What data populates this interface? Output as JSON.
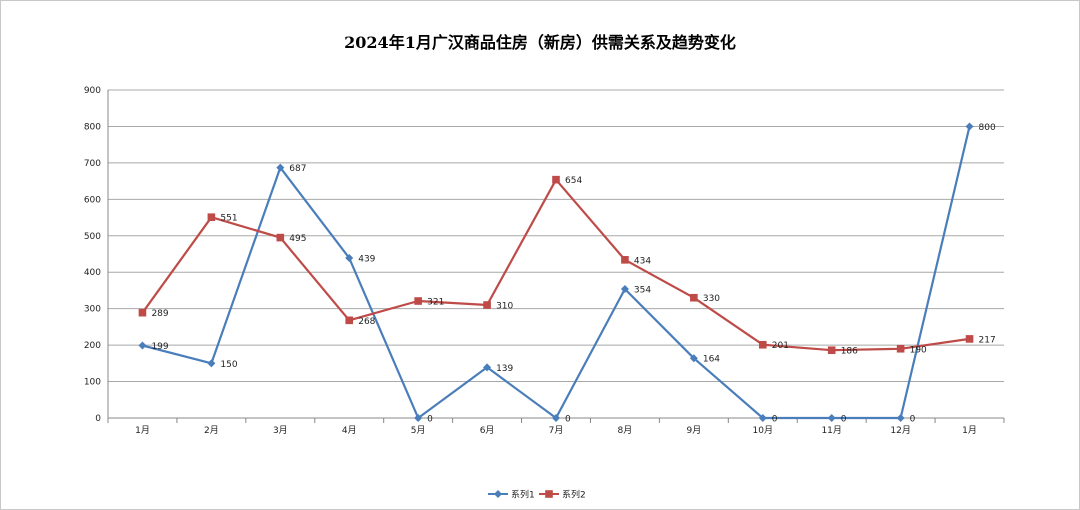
{
  "chart_data": {
    "type": "line",
    "title": "2024年1月广汉商品住房（新房）供需关系及趋势变化",
    "categories": [
      "1月",
      "2月",
      "3月",
      "4月",
      "5月",
      "6月",
      "7月",
      "8月",
      "9月",
      "10月",
      "11月",
      "12月",
      "1月"
    ],
    "ylim": [
      0,
      900
    ],
    "yticks": [
      0,
      100,
      200,
      300,
      400,
      500,
      600,
      700,
      800,
      900
    ],
    "grid": true,
    "legend_position": "bottom",
    "series": [
      {
        "name": "系列1",
        "color": "#4a7ebb",
        "marker": "diamond",
        "values": [
          199,
          150,
          687,
          439,
          0,
          139,
          0,
          354,
          164,
          0,
          0,
          0,
          800
        ]
      },
      {
        "name": "系列2",
        "color": "#be4b48",
        "marker": "square",
        "values": [
          289,
          551,
          495,
          268,
          321,
          310,
          654,
          434,
          330,
          201,
          186,
          190,
          217
        ]
      }
    ]
  }
}
